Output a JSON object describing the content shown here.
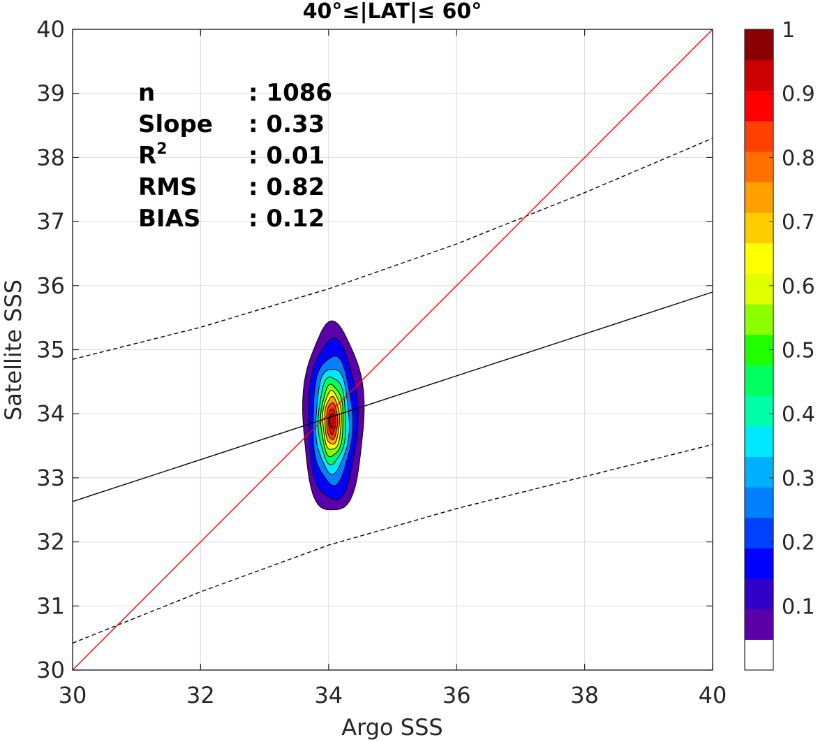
{
  "chart_data": {
    "type": "contour",
    "title": "40°≤|LAT|≤ 60°",
    "xlabel": "Argo SSS",
    "ylabel": "Satellite SSS",
    "xlim": [
      30,
      40
    ],
    "ylim": [
      30,
      40
    ],
    "xticks": [
      "30",
      "32",
      "34",
      "36",
      "38",
      "40"
    ],
    "yticks": [
      "30",
      "31",
      "32",
      "33",
      "34",
      "35",
      "36",
      "37",
      "38",
      "39",
      "40"
    ],
    "grid": true,
    "stats": [
      {
        "label": "n",
        "value": ": 1086"
      },
      {
        "label": "Slope",
        "value": ": 0.33"
      },
      {
        "label": "R",
        "sup": "2",
        "value": ": 0.01"
      },
      {
        "label": "RMS",
        "value": ": 0.82"
      },
      {
        "label": "BIAS",
        "value": ": 0.12"
      }
    ],
    "lines": {
      "one_to_one": {
        "x": [
          30,
          40
        ],
        "y": [
          30,
          40
        ],
        "color": "#ff0000"
      },
      "regression": {
        "x": [
          30,
          40
        ],
        "y": [
          32.63,
          35.9
        ],
        "color": "#000000"
      },
      "upper_bound": {
        "x": [
          30,
          32,
          34,
          36,
          38,
          40
        ],
        "y": [
          34.85,
          35.35,
          35.95,
          36.65,
          37.45,
          38.3
        ],
        "color": "#000000",
        "style": "dashed"
      },
      "lower_bound": {
        "x": [
          30,
          32,
          34,
          36,
          38,
          40
        ],
        "y": [
          30.42,
          31.22,
          31.95,
          32.52,
          33.02,
          33.52
        ],
        "color": "#000000",
        "style": "dashed"
      }
    },
    "density": {
      "center": [
        34.05,
        33.9
      ],
      "levels": [
        {
          "level": 0.05,
          "half_width": [
            0.45,
            0.5
          ],
          "up": 1.5,
          "down": 1.45
        },
        {
          "level": 0.15,
          "half_width": [
            0.37,
            0.4
          ],
          "up": 1.25,
          "down": 1.25
        },
        {
          "level": 0.25,
          "half_width": [
            0.3,
            0.32
          ],
          "up": 1.0,
          "down": 1.0
        },
        {
          "level": 0.35,
          "half_width": [
            0.25,
            0.27
          ],
          "up": 0.82,
          "down": 0.82
        },
        {
          "level": 0.45,
          "half_width": [
            0.21,
            0.22
          ],
          "up": 0.68,
          "down": 0.68
        },
        {
          "level": 0.55,
          "half_width": [
            0.17,
            0.18
          ],
          "up": 0.55,
          "down": 0.57
        },
        {
          "level": 0.65,
          "half_width": [
            0.14,
            0.15
          ],
          "up": 0.45,
          "down": 0.47
        },
        {
          "level": 0.75,
          "half_width": [
            0.11,
            0.12
          ],
          "up": 0.36,
          "down": 0.38
        },
        {
          "level": 0.85,
          "half_width": [
            0.08,
            0.09
          ],
          "up": 0.27,
          "down": 0.3
        },
        {
          "level": 0.92,
          "half_width": [
            0.05,
            0.06
          ],
          "up": 0.18,
          "down": 0.22
        },
        {
          "level": 0.97,
          "half_width": [
            0.03,
            0.03
          ],
          "up": 0.1,
          "down": 0.13
        }
      ]
    },
    "colorbar": {
      "ticks": [
        "0.1",
        "0.2",
        "0.3",
        "0.4",
        "0.5",
        "0.6",
        "0.7",
        "0.8",
        "0.9",
        "1"
      ],
      "range": [
        0,
        1
      ],
      "colors": [
        "#ffffff",
        "#5b00a8",
        "#3000c8",
        "#0000ff",
        "#0040ff",
        "#0080ff",
        "#00b0ff",
        "#00e8ff",
        "#00ffaa",
        "#00ff60",
        "#20ff00",
        "#8cff00",
        "#e0ff00",
        "#ffff00",
        "#ffcc00",
        "#ffa000",
        "#ff7000",
        "#ff4000",
        "#ff0000",
        "#cc0000",
        "#8b0000"
      ]
    }
  }
}
